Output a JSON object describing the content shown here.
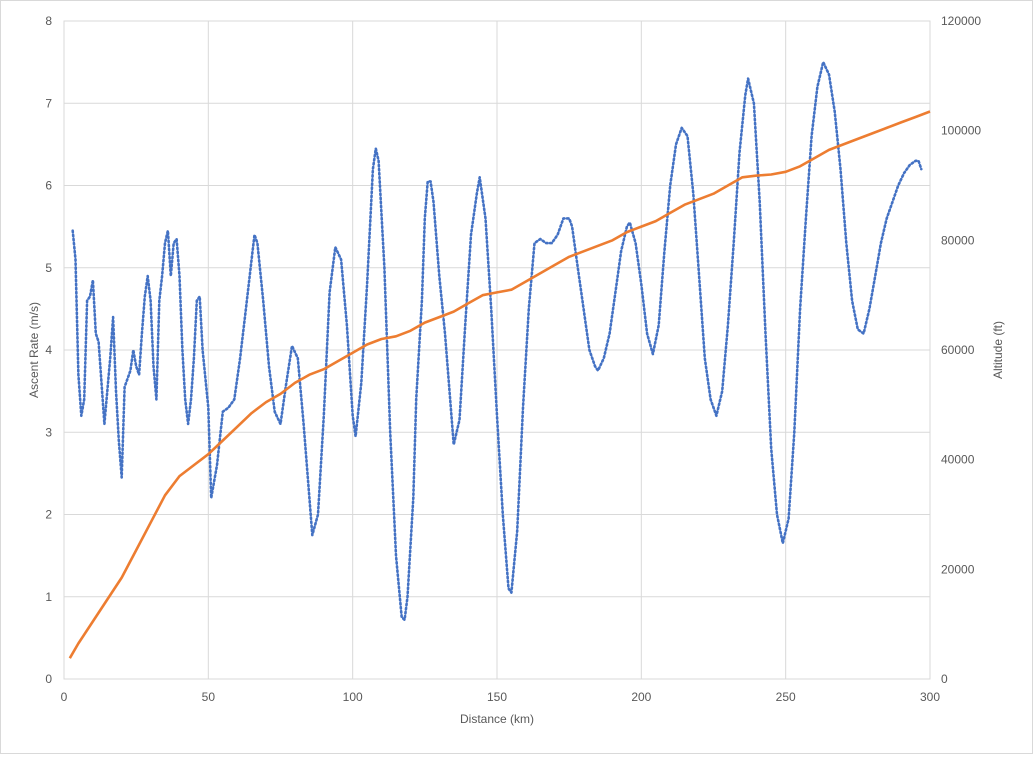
{
  "chart_data": {
    "type": "line",
    "xlabel": "Distance (km)",
    "ylabel": "Ascent Rate (m/s)",
    "y2label": "Altitude (ft)",
    "xlim": [
      0,
      300
    ],
    "ylim": [
      0,
      8
    ],
    "y2lim": [
      0,
      120000
    ],
    "x_ticks": [
      0,
      50,
      100,
      150,
      200,
      250,
      300
    ],
    "y_ticks": [
      0,
      1,
      2,
      3,
      4,
      5,
      6,
      7,
      8
    ],
    "y2_ticks": [
      0,
      20000,
      40000,
      60000,
      80000,
      100000,
      120000
    ],
    "grid": true,
    "series": [
      {
        "name": "Ascent Rate",
        "axis": "left",
        "color": "#4472c4",
        "style": "dotted",
        "points": [
          [
            3,
            5.45
          ],
          [
            4,
            5.1
          ],
          [
            5,
            3.7
          ],
          [
            6,
            3.2
          ],
          [
            7,
            3.4
          ],
          [
            8,
            4.6
          ],
          [
            9,
            4.65
          ],
          [
            10,
            4.85
          ],
          [
            11,
            4.2
          ],
          [
            12,
            4.1
          ],
          [
            13,
            3.6
          ],
          [
            14,
            3.1
          ],
          [
            15,
            3.5
          ],
          [
            16,
            3.9
          ],
          [
            17,
            4.4
          ],
          [
            18,
            3.5
          ],
          [
            19,
            2.9
          ],
          [
            20,
            2.45
          ],
          [
            21,
            3.55
          ],
          [
            22,
            3.65
          ],
          [
            23,
            3.75
          ],
          [
            24,
            4.0
          ],
          [
            25,
            3.8
          ],
          [
            26,
            3.7
          ],
          [
            27,
            4.2
          ],
          [
            28,
            4.65
          ],
          [
            29,
            4.9
          ],
          [
            30,
            4.6
          ],
          [
            31,
            3.8
          ],
          [
            32,
            3.4
          ],
          [
            33,
            4.6
          ],
          [
            34,
            4.9
          ],
          [
            35,
            5.3
          ],
          [
            36,
            5.45
          ],
          [
            37,
            4.9
          ],
          [
            38,
            5.3
          ],
          [
            39,
            5.35
          ],
          [
            40,
            4.9
          ],
          [
            41,
            4.0
          ],
          [
            42,
            3.4
          ],
          [
            43,
            3.1
          ],
          [
            44,
            3.4
          ],
          [
            45,
            3.9
          ],
          [
            46,
            4.6
          ],
          [
            47,
            4.65
          ],
          [
            48,
            4.0
          ],
          [
            50,
            3.3
          ],
          [
            51,
            2.2
          ],
          [
            53,
            2.6
          ],
          [
            55,
            3.25
          ],
          [
            57,
            3.3
          ],
          [
            59,
            3.4
          ],
          [
            61,
            3.9
          ],
          [
            63,
            4.5
          ],
          [
            65,
            5.1
          ],
          [
            66,
            5.4
          ],
          [
            67,
            5.3
          ],
          [
            69,
            4.6
          ],
          [
            71,
            3.8
          ],
          [
            73,
            3.25
          ],
          [
            75,
            3.1
          ],
          [
            77,
            3.6
          ],
          [
            79,
            4.05
          ],
          [
            81,
            3.9
          ],
          [
            83,
            3.1
          ],
          [
            85,
            2.2
          ],
          [
            86,
            1.75
          ],
          [
            88,
            2.0
          ],
          [
            90,
            3.2
          ],
          [
            92,
            4.7
          ],
          [
            94,
            5.25
          ],
          [
            96,
            5.1
          ],
          [
            98,
            4.3
          ],
          [
            100,
            3.2
          ],
          [
            101,
            2.95
          ],
          [
            103,
            3.6
          ],
          [
            105,
            4.8
          ],
          [
            107,
            6.2
          ],
          [
            108,
            6.45
          ],
          [
            109,
            6.3
          ],
          [
            111,
            5.0
          ],
          [
            113,
            3.0
          ],
          [
            115,
            1.5
          ],
          [
            117,
            0.75
          ],
          [
            118,
            0.72
          ],
          [
            119,
            1.0
          ],
          [
            121,
            2.2
          ],
          [
            122,
            3.4
          ],
          [
            124,
            4.6
          ],
          [
            125,
            5.6
          ],
          [
            126,
            6.05
          ],
          [
            127,
            6.05
          ],
          [
            128,
            5.8
          ],
          [
            130,
            4.9
          ],
          [
            132,
            4.2
          ],
          [
            134,
            3.3
          ],
          [
            135,
            2.85
          ],
          [
            137,
            3.15
          ],
          [
            139,
            4.3
          ],
          [
            141,
            5.4
          ],
          [
            143,
            5.9
          ],
          [
            144,
            6.1
          ],
          [
            146,
            5.6
          ],
          [
            148,
            4.5
          ],
          [
            150,
            3.2
          ],
          [
            152,
            2.0
          ],
          [
            154,
            1.1
          ],
          [
            155,
            1.05
          ],
          [
            157,
            1.8
          ],
          [
            159,
            3.3
          ],
          [
            161,
            4.5
          ],
          [
            163,
            5.3
          ],
          [
            165,
            5.35
          ],
          [
            167,
            5.3
          ],
          [
            169,
            5.3
          ],
          [
            171,
            5.4
          ],
          [
            173,
            5.6
          ],
          [
            175,
            5.6
          ],
          [
            176,
            5.5
          ],
          [
            178,
            5.0
          ],
          [
            180,
            4.5
          ],
          [
            182,
            4.0
          ],
          [
            184,
            3.8
          ],
          [
            185,
            3.75
          ],
          [
            187,
            3.9
          ],
          [
            189,
            4.2
          ],
          [
            191,
            4.7
          ],
          [
            193,
            5.2
          ],
          [
            195,
            5.5
          ],
          [
            196,
            5.55
          ],
          [
            198,
            5.3
          ],
          [
            200,
            4.8
          ],
          [
            202,
            4.2
          ],
          [
            204,
            3.95
          ],
          [
            206,
            4.3
          ],
          [
            208,
            5.2
          ],
          [
            210,
            6.0
          ],
          [
            212,
            6.5
          ],
          [
            214,
            6.7
          ],
          [
            216,
            6.6
          ],
          [
            218,
            5.9
          ],
          [
            220,
            4.9
          ],
          [
            222,
            3.9
          ],
          [
            224,
            3.4
          ],
          [
            226,
            3.2
          ],
          [
            228,
            3.5
          ],
          [
            230,
            4.3
          ],
          [
            232,
            5.3
          ],
          [
            234,
            6.4
          ],
          [
            236,
            7.1
          ],
          [
            237,
            7.3
          ],
          [
            239,
            7.0
          ],
          [
            241,
            5.8
          ],
          [
            243,
            4.2
          ],
          [
            245,
            2.8
          ],
          [
            247,
            2.0
          ],
          [
            249,
            1.65
          ],
          [
            251,
            1.95
          ],
          [
            253,
            3.0
          ],
          [
            255,
            4.5
          ],
          [
            257,
            5.6
          ],
          [
            259,
            6.6
          ],
          [
            261,
            7.2
          ],
          [
            263,
            7.5
          ],
          [
            265,
            7.35
          ],
          [
            267,
            6.9
          ],
          [
            269,
            6.2
          ],
          [
            271,
            5.3
          ],
          [
            273,
            4.6
          ],
          [
            275,
            4.25
          ],
          [
            277,
            4.2
          ],
          [
            279,
            4.5
          ],
          [
            281,
            4.9
          ],
          [
            283,
            5.3
          ],
          [
            285,
            5.6
          ],
          [
            287,
            5.8
          ],
          [
            289,
            6.0
          ],
          [
            291,
            6.15
          ],
          [
            293,
            6.25
          ],
          [
            295,
            6.3
          ],
          [
            296,
            6.3
          ],
          [
            297,
            6.2
          ]
        ]
      },
      {
        "name": "Altitude",
        "axis": "right",
        "color": "#ed7d31",
        "style": "solid",
        "points": [
          [
            2,
            3800
          ],
          [
            5,
            6500
          ],
          [
            10,
            10500
          ],
          [
            15,
            14500
          ],
          [
            20,
            18500
          ],
          [
            25,
            23500
          ],
          [
            30,
            28500
          ],
          [
            35,
            33500
          ],
          [
            40,
            37000
          ],
          [
            45,
            39000
          ],
          [
            50,
            41000
          ],
          [
            55,
            43500
          ],
          [
            60,
            46000
          ],
          [
            65,
            48500
          ],
          [
            70,
            50500
          ],
          [
            75,
            52000
          ],
          [
            80,
            54000
          ],
          [
            85,
            55500
          ],
          [
            90,
            56500
          ],
          [
            95,
            58000
          ],
          [
            100,
            59500
          ],
          [
            105,
            61000
          ],
          [
            110,
            62000
          ],
          [
            115,
            62500
          ],
          [
            120,
            63500
          ],
          [
            125,
            65000
          ],
          [
            130,
            66000
          ],
          [
            135,
            67000
          ],
          [
            140,
            68500
          ],
          [
            145,
            70000
          ],
          [
            150,
            70500
          ],
          [
            155,
            71000
          ],
          [
            160,
            72500
          ],
          [
            165,
            74000
          ],
          [
            170,
            75500
          ],
          [
            175,
            77000
          ],
          [
            180,
            78000
          ],
          [
            185,
            79000
          ],
          [
            190,
            80000
          ],
          [
            195,
            81500
          ],
          [
            200,
            82500
          ],
          [
            205,
            83500
          ],
          [
            210,
            85000
          ],
          [
            215,
            86500
          ],
          [
            220,
            87500
          ],
          [
            225,
            88500
          ],
          [
            230,
            90000
          ],
          [
            235,
            91500
          ],
          [
            240,
            91800
          ],
          [
            245,
            92000
          ],
          [
            250,
            92500
          ],
          [
            255,
            93500
          ],
          [
            260,
            95000
          ],
          [
            265,
            96500
          ],
          [
            270,
            97500
          ],
          [
            275,
            98500
          ],
          [
            280,
            99500
          ],
          [
            285,
            100500
          ],
          [
            290,
            101500
          ],
          [
            295,
            102500
          ],
          [
            300,
            103500
          ]
        ]
      }
    ]
  }
}
